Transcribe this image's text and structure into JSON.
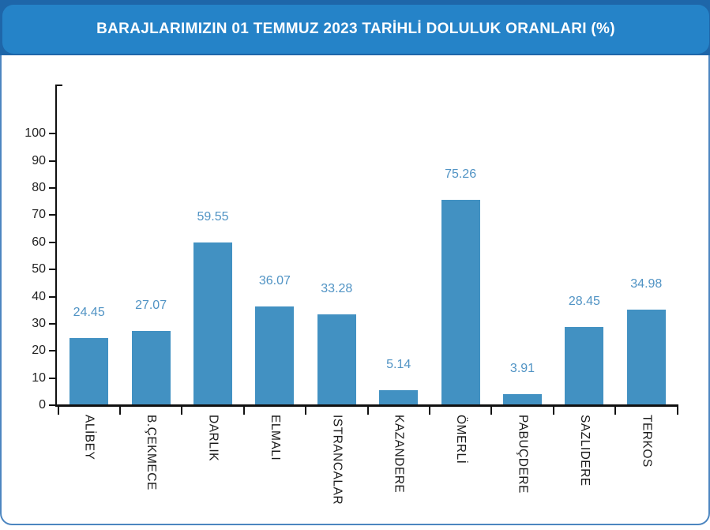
{
  "header": {
    "title": "BARAJLARIMIZIN 01 TEMMUZ 2023 TARİHLİ DOLULUK ORANLARI (%)"
  },
  "colors": {
    "page_top": "#1e66a9",
    "banner": "#2583c8",
    "title_text": "#ffffff",
    "bar": "#4291c2",
    "value_label": "#5093c4",
    "card_border": "#4c86c0",
    "axis": "#111111",
    "tick_label": "#222222"
  },
  "chart_data": {
    "type": "bar",
    "title": "BARAJLARIMIZIN 01 TEMMUZ 2023 TARİHLİ DOLULUK ORANLARI (%)",
    "categories": [
      "ALİBEY",
      "B.ÇEKMECE",
      "DARLIK",
      "ELMALI",
      "ISTRANCALAR",
      "KAZANDERE",
      "ÖMERLİ",
      "PABUÇDERE",
      "SAZLIDERE",
      "TERKOS"
    ],
    "values": [
      24.45,
      27.07,
      59.55,
      36.07,
      33.28,
      5.14,
      75.26,
      3.91,
      28.45,
      34.98
    ],
    "value_labels": [
      "24.45",
      "27.07",
      "59.55",
      "36.07",
      "33.28",
      "5.14",
      "75.26",
      "3.91",
      "28.45",
      "34.98"
    ],
    "xlabel": "",
    "ylabel": "",
    "ylim": [
      0,
      100
    ],
    "yticks": [
      0,
      10,
      20,
      30,
      40,
      50,
      60,
      70,
      80,
      90,
      100
    ],
    "grid": false,
    "legend": false,
    "bar_color": "#4291c2",
    "value_label_color": "#5093c4",
    "x_label_rotation": 90,
    "x_tick_position": "category-boundaries"
  }
}
